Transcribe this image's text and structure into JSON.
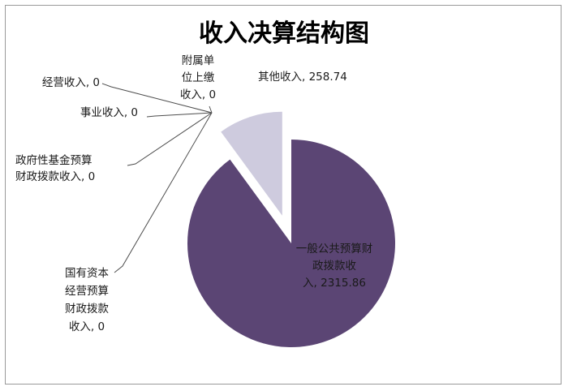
{
  "chart_data": {
    "type": "pie",
    "title": "收入决算结构图",
    "slices": [
      {
        "label": "一般公共预算财政拨款收入",
        "value": 2315.86,
        "color": "#5b4574",
        "label_lines": [
          "一般公共预算财",
          "政拨款收",
          "入, 2315.86"
        ]
      },
      {
        "label": "其他收入",
        "value": 258.74,
        "color": "#cecbde",
        "label_lines": [
          "其他收入, 258.74"
        ]
      },
      {
        "label": "附属单位上缴收入",
        "value": 0,
        "color": "#cecbde",
        "label_lines": [
          "附属单",
          "位上缴",
          "收入, 0"
        ]
      },
      {
        "label": "经营收入",
        "value": 0,
        "color": "#cecbde",
        "label_lines": [
          "经营收入, 0"
        ]
      },
      {
        "label": "事业收入",
        "value": 0,
        "color": "#cecbde",
        "label_lines": [
          "事业收入, 0"
        ]
      },
      {
        "label": "政府性基金预算财政拨款收入",
        "value": 0,
        "color": "#cecbde",
        "label_lines": [
          "政府性基金预算",
          "财政拨款收入, 0"
        ]
      },
      {
        "label": "国有资本经营预算财政拨款收入",
        "value": 0,
        "color": "#cecbde",
        "label_lines": [
          "国有资本",
          "经营预算",
          "财政拨款",
          "收入, 0"
        ]
      }
    ],
    "legend": "none",
    "exploded": true
  }
}
